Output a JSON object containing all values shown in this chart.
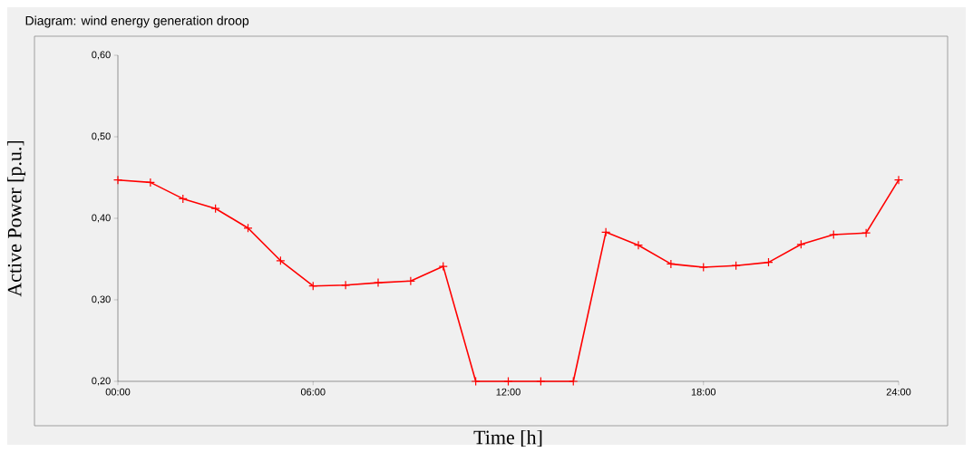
{
  "chart_data": {
    "type": "line",
    "title": "Diagram: wind energy generation droop",
    "xlabel": "Time [h]",
    "ylabel": "Active Power [p.u.]",
    "x": [
      0,
      1,
      2,
      3,
      4,
      5,
      6,
      7,
      8,
      9,
      10,
      11,
      12,
      13,
      14,
      15,
      16,
      17,
      18,
      19,
      20,
      21,
      22,
      23,
      24
    ],
    "values": [
      0.447,
      0.444,
      0.424,
      0.412,
      0.388,
      0.348,
      0.317,
      0.318,
      0.321,
      0.323,
      0.341,
      0.2,
      0.2,
      0.2,
      0.2,
      0.383,
      0.367,
      0.344,
      0.34,
      0.342,
      0.346,
      0.368,
      0.38,
      0.382,
      0.447
    ],
    "color": "#ff0000",
    "marker": "cross",
    "line_style": "solid",
    "xlim": [
      0,
      24
    ],
    "ylim": [
      0.2,
      0.6
    ],
    "xticks": [
      {
        "value": 0,
        "label": "00:00"
      },
      {
        "value": 6,
        "label": "06:00"
      },
      {
        "value": 12,
        "label": "12:00"
      },
      {
        "value": 18,
        "label": "18:00"
      },
      {
        "value": 24,
        "label": "24:00"
      }
    ],
    "yticks": [
      {
        "value": 0.2,
        "label": "0,20"
      },
      {
        "value": 0.3,
        "label": "0,30"
      },
      {
        "value": 0.4,
        "label": "0,40"
      },
      {
        "value": 0.5,
        "label": "0,50"
      },
      {
        "value": 0.6,
        "label": "0,60"
      }
    ]
  }
}
